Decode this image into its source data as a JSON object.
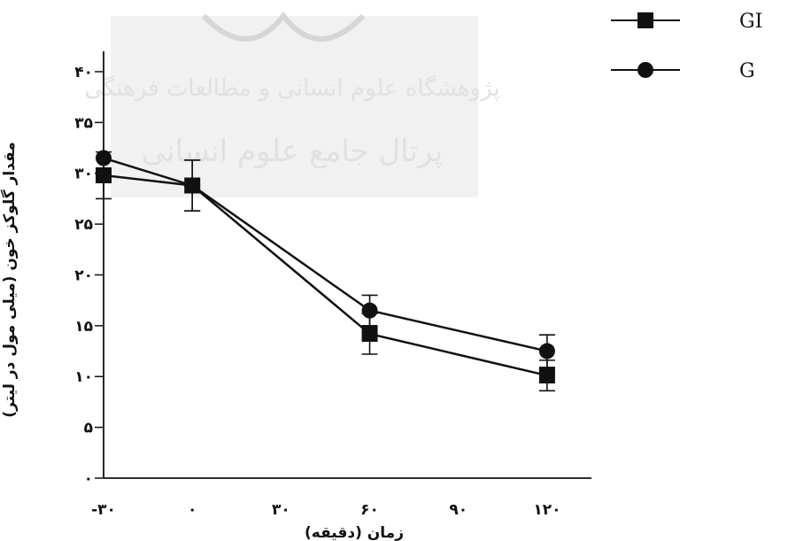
{
  "chart_data": {
    "type": "line",
    "title": "",
    "xlabel": "زمان (دقیقه)",
    "ylabel": "مقدار گلوکز خون (میلی مول در لیتر)",
    "x": [
      -30,
      0,
      60,
      120
    ],
    "x_ticks": [
      -30,
      0,
      30,
      60,
      90,
      120
    ],
    "x_tick_labels": [
      "-۳۰",
      "۰",
      "۳۰",
      "۶۰",
      "۹۰",
      "۱۲۰"
    ],
    "xlim": [
      -30,
      135
    ],
    "y_ticks": [
      0,
      5,
      10,
      15,
      20,
      25,
      30,
      35,
      40
    ],
    "y_tick_labels": [
      "۰",
      "۵",
      "۱۰",
      "۱۵",
      "۲۰",
      "۲۵",
      "۳۰",
      "۳۵",
      "۴۰"
    ],
    "ylim": [
      0,
      42
    ],
    "grid": false,
    "legend": "top-right",
    "series": [
      {
        "name": "GI",
        "marker": "square",
        "values": [
          29.8,
          28.8,
          14.2,
          10.1
        ],
        "error": [
          2.3,
          2.5,
          2.0,
          1.5
        ]
      },
      {
        "name": "G",
        "marker": "circle",
        "values": [
          31.5,
          28.8,
          16.5,
          12.5
        ],
        "error": [
          0,
          2.5,
          1.5,
          1.6
        ]
      }
    ]
  }
}
